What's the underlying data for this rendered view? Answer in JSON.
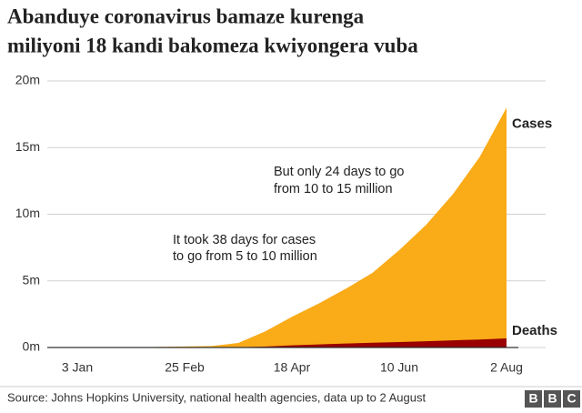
{
  "chart_data": {
    "type": "area",
    "title": [
      "Abanduye coronavirus bamaze kurenga",
      "miliyoni 18 kandi bakomeza kwiyongera vuba"
    ],
    "categories": [
      "3 Jan",
      null,
      null,
      null,
      "25 Feb",
      null,
      null,
      null,
      "18 Apr",
      null,
      null,
      null,
      "10 Jun",
      null,
      null,
      null,
      "2 Aug"
    ],
    "series": [
      {
        "name": "Cases",
        "color": "#faab18",
        "values": [
          0,
          0.001,
          0.006,
          0.045,
          0.08,
          0.11,
          0.34,
          1.2,
          2.3,
          3.3,
          4.4,
          5.6,
          7.3,
          9.2,
          11.5,
          14.3,
          18
        ]
      },
      {
        "name": "Deaths",
        "color": "#990000",
        "values": [
          0,
          0,
          0,
          0.001,
          0.003,
          0.004,
          0.015,
          0.07,
          0.16,
          0.23,
          0.3,
          0.36,
          0.41,
          0.47,
          0.54,
          0.6,
          0.68
        ]
      }
    ],
    "ylim": [
      0,
      20
    ],
    "yticks": [
      {
        "value": 0,
        "label": "0m"
      },
      {
        "value": 5,
        "label": "5m"
      },
      {
        "value": 10,
        "label": "10m"
      },
      {
        "value": 15,
        "label": "15m"
      },
      {
        "value": 20,
        "label": "20m"
      }
    ],
    "grid": true,
    "annotations": [
      [
        "It took 38 days for cases",
        "to go from 5 to 10 million"
      ],
      [
        "But only 24 days to go",
        "from 10 to 15 million"
      ]
    ],
    "source": "Source: Johns Hopkins University, national health agencies, data up to 2 August",
    "logo": [
      "B",
      "B",
      "C"
    ]
  }
}
